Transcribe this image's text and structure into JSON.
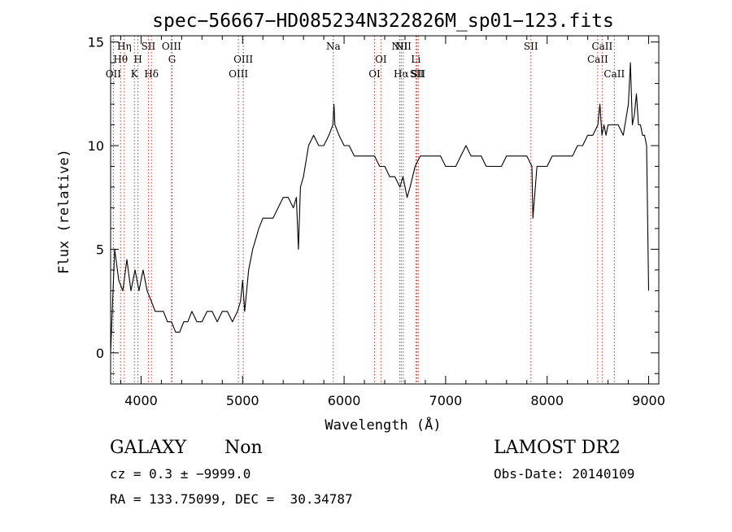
{
  "chart_data": {
    "type": "line",
    "title": "spec−56667−HD085234N322826M_sp01−123.fits",
    "xlabel": "Wavelength (Å)",
    "ylabel": "Flux (relative)",
    "xlim": [
      3700,
      9100
    ],
    "ylim": [
      -1.5,
      15.3
    ],
    "x_ticks": [
      4000,
      5000,
      6000,
      7000,
      8000,
      9000
    ],
    "y_ticks": [
      0,
      5,
      10,
      15
    ],
    "grid": false,
    "legend": "none",
    "series": [
      {
        "x": [
          3700,
          3740,
          3780,
          3820,
          3860,
          3900,
          3940,
          3980,
          4020,
          4060,
          4100,
          4140,
          4180,
          4220,
          4260,
          4300,
          4340,
          4380,
          4420,
          4460,
          4500,
          4550,
          4600,
          4650,
          4700,
          4750,
          4800,
          4850,
          4900,
          4950,
          4980,
          5000,
          5020,
          5040,
          5060,
          5080,
          5100,
          5130,
          5160,
          5200,
          5250,
          5300,
          5350,
          5400,
          5450,
          5500,
          5530,
          5550,
          5570,
          5600,
          5650,
          5700,
          5750,
          5800,
          5850,
          5890,
          5900,
          5910,
          5950,
          6000,
          6050,
          6100,
          6150,
          6200,
          6250,
          6300,
          6350,
          6400,
          6450,
          6500,
          6550,
          6580,
          6600,
          6620,
          6650,
          6700,
          6750,
          6800,
          6850,
          6900,
          6950,
          7000,
          7050,
          7100,
          7150,
          7200,
          7250,
          7300,
          7350,
          7400,
          7450,
          7500,
          7550,
          7600,
          7650,
          7700,
          7750,
          7800,
          7850,
          7860,
          7900,
          7950,
          8000,
          8050,
          8100,
          8150,
          8200,
          8250,
          8300,
          8350,
          8400,
          8450,
          8500,
          8520,
          8540,
          8560,
          8580,
          8600,
          8650,
          8700,
          8750,
          8800,
          8820,
          8840,
          8860,
          8880,
          8900,
          8920,
          8940,
          8960,
          8980,
          9000
        ],
        "y": [
          0,
          5,
          3.5,
          3,
          4.5,
          3,
          4,
          3,
          4,
          3,
          2.5,
          2,
          2,
          2,
          1.5,
          1.5,
          1,
          1,
          1.5,
          1.5,
          2,
          1.5,
          1.5,
          2,
          2,
          1.5,
          2,
          2,
          1.5,
          2,
          2.5,
          3.5,
          2,
          3,
          4,
          4.5,
          5,
          5.5,
          6,
          6.5,
          6.5,
          6.5,
          7,
          7.5,
          7.5,
          7,
          7.5,
          5,
          8,
          8.5,
          10,
          10.5,
          10,
          10,
          10.5,
          11,
          12,
          11,
          10.5,
          10,
          10,
          9.5,
          9.5,
          9.5,
          9.5,
          9.5,
          9,
          9,
          8.5,
          8.5,
          8,
          8.5,
          8,
          7.5,
          8,
          9,
          9.5,
          9.5,
          9.5,
          9.5,
          9.5,
          9,
          9,
          9,
          9.5,
          10,
          9.5,
          9.5,
          9.5,
          9,
          9,
          9,
          9,
          9.5,
          9.5,
          9.5,
          9.5,
          9.5,
          9,
          6.5,
          9,
          9,
          9,
          9.5,
          9.5,
          9.5,
          9.5,
          9.5,
          10,
          10,
          10.5,
          10.5,
          11,
          12,
          10.5,
          11,
          10.5,
          11,
          11,
          11,
          10.5,
          12,
          14,
          11,
          11.5,
          12.5,
          11,
          11,
          10.5,
          10.5,
          10,
          3
        ]
      }
    ],
    "lines": {
      "marks": [
        {
          "label": "OII",
          "x": 3727,
          "row": 3
        },
        {
          "label": "Hθ",
          "x": 3798,
          "row": 2
        },
        {
          "label": "Hη",
          "x": 3835,
          "row": 1
        },
        {
          "label": "K",
          "x": 3934,
          "row": 3
        },
        {
          "label": "H",
          "x": 3969,
          "row": 2
        },
        {
          "label": "SII",
          "x": 4072,
          "row": 1
        },
        {
          "label": "Hδ",
          "x": 4102,
          "row": 3
        },
        {
          "label": "OIII",
          "x": 4300,
          "row": 1
        },
        {
          "label": "G",
          "x": 4305,
          "row": 2
        },
        {
          "label": "OIII",
          "x": 4959,
          "row": 3
        },
        {
          "label": "OIII",
          "x": 5007,
          "row": 2
        },
        {
          "label": "Na",
          "x": 5894,
          "row": 1
        },
        {
          "label": "OI",
          "x": 6300,
          "row": 3
        },
        {
          "label": "OI",
          "x": 6363,
          "row": 2
        },
        {
          "label": "NII",
          "x": 6548,
          "row": 1
        },
        {
          "label": "Hα",
          "x": 6563,
          "row": 3
        },
        {
          "label": "NII",
          "x": 6583,
          "row": 1
        },
        {
          "label": "Li",
          "x": 6707,
          "row": 2
        },
        {
          "label": "SII",
          "x": 6717,
          "row": 3
        },
        {
          "label": "SII",
          "x": 6731,
          "row": 3
        },
        {
          "label": "SII",
          "x": 7840,
          "row": 1
        },
        {
          "label": "CaII",
          "x": 8498,
          "row": 2
        },
        {
          "label": "CaII",
          "x": 8542,
          "row": 1
        },
        {
          "label": "CaII",
          "x": 8662,
          "row": 3
        }
      ]
    }
  },
  "info": {
    "class": "GALAXY",
    "subclass": "Non",
    "cz": "cz = 0.3 ± −9999.0",
    "radec": "RA = 133.75099, DEC =  30.34787",
    "survey": "LAMOST DR2",
    "obsdate": "Obs-Date: 20140109"
  }
}
